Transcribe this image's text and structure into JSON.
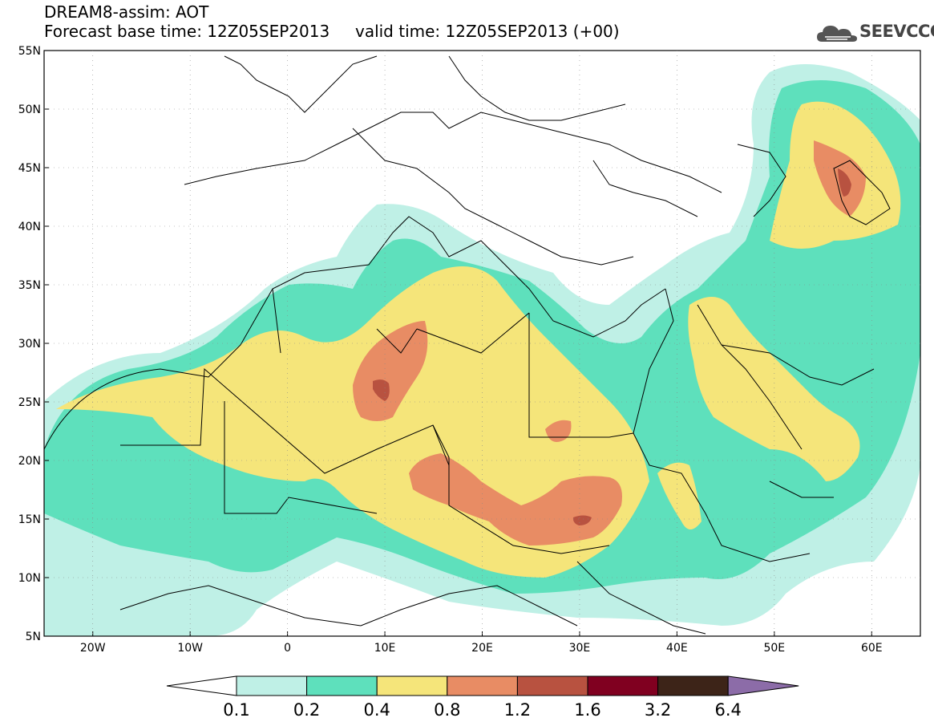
{
  "title": {
    "line1": "DREAM8-assim: AOT",
    "line2": "Forecast base time: 12Z05SEP2013     valid time: 12Z05SEP2013 (+00)"
  },
  "logo": {
    "text": "SEEVCCC",
    "icon": "cloud-icon"
  },
  "map": {
    "lon_range": [
      -25,
      65
    ],
    "lat_range": [
      5,
      55
    ],
    "lat_ticks": [
      {
        "value": 55,
        "label": "55N"
      },
      {
        "value": 50,
        "label": "50N"
      },
      {
        "value": 45,
        "label": "45N"
      },
      {
        "value": 40,
        "label": "40N"
      },
      {
        "value": 35,
        "label": "35N"
      },
      {
        "value": 30,
        "label": "30N"
      },
      {
        "value": 25,
        "label": "25N"
      },
      {
        "value": 20,
        "label": "20N"
      },
      {
        "value": 15,
        "label": "15N"
      },
      {
        "value": 10,
        "label": "10N"
      },
      {
        "value": 5,
        "label": "5N"
      }
    ],
    "lon_ticks": [
      {
        "value": -20,
        "label": "20W"
      },
      {
        "value": -10,
        "label": "10W"
      },
      {
        "value": 0,
        "label": "0"
      },
      {
        "value": 10,
        "label": "10E"
      },
      {
        "value": 20,
        "label": "20E"
      },
      {
        "value": 30,
        "label": "30E"
      },
      {
        "value": 40,
        "label": "40E"
      },
      {
        "value": 50,
        "label": "50E"
      },
      {
        "value": 60,
        "label": "60E"
      }
    ]
  },
  "colorbar": {
    "colors": [
      "#ffffff",
      "#bff0e6",
      "#5ee0bc",
      "#f5e57a",
      "#e88c64",
      "#b85240",
      "#800020",
      "#3d2418",
      "#8c6ca8"
    ],
    "labels": [
      "0.1",
      "0.2",
      "0.4",
      "0.8",
      "1.2",
      "1.6",
      "3.2",
      "6.4"
    ]
  },
  "levels": {
    "c1": "#bff0e6",
    "c2": "#5ee0bc",
    "c3": "#f5e57a",
    "c4": "#e88c64",
    "c5": "#b85240",
    "c6": "#800020"
  }
}
